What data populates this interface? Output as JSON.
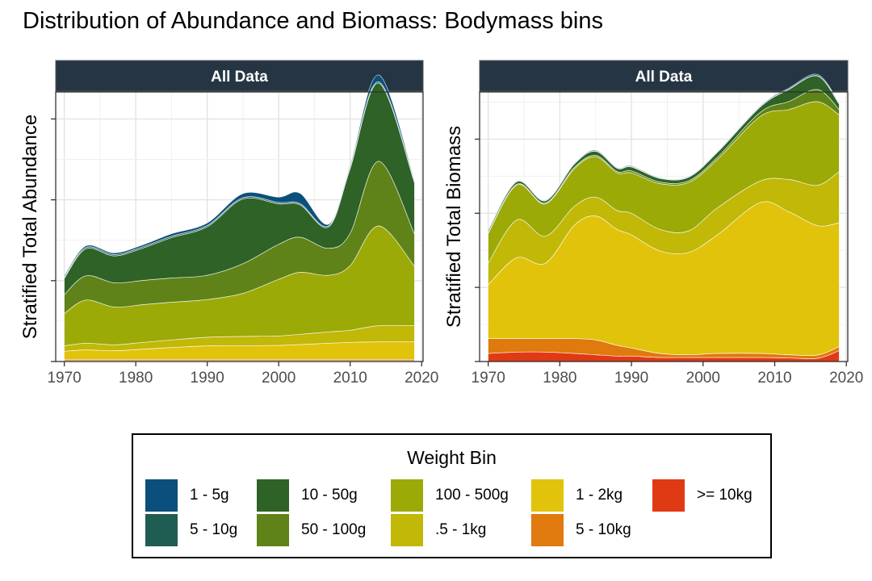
{
  "title": "Distribution of Abundance and Biomass: Bodymass bins",
  "legend": {
    "title": "Weight Bin",
    "entries": [
      {
        "label": "1 - 5g",
        "color": "#0b4f7c"
      },
      {
        "label": "5 - 10g",
        "color": "#1f5c52"
      },
      {
        "label": "10 - 50g",
        "color": "#2f6226"
      },
      {
        "label": "50 - 100g",
        "color": "#5f8318"
      },
      {
        "label": "100 - 500g",
        "color": "#9caa08"
      },
      {
        "label": ".5 - 1kg",
        "color": "#c1b807"
      },
      {
        "label": "1 - 2kg",
        "color": "#e2c30c"
      },
      {
        "label": "5 - 10kg",
        "color": "#e0790e"
      },
      {
        "label": ">= 10kg",
        "color": "#e03a14"
      }
    ]
  },
  "chart_data": [
    {
      "type": "area",
      "stacked": true,
      "strip_label": "All Data",
      "ylabel": "Stratified Total Abundance",
      "xlabel": "",
      "xlim": [
        1968.8,
        2020.2
      ],
      "ylim": [
        0,
        100
      ],
      "xticks": [
        1970,
        1980,
        1990,
        2000,
        2010,
        2020
      ],
      "yticks": [
        0,
        30,
        60,
        90
      ],
      "ytick_labels_shown": false,
      "grid": true,
      "x": [
        1970,
        1973,
        1977,
        1981,
        1985,
        1990,
        1995,
        2000,
        2003,
        2007,
        2010,
        2014,
        2019
      ],
      "series": [
        {
          "name": ">= 10kg",
          "values": [
            0.3,
            0.3,
            0.3,
            0.3,
            0.3,
            0.3,
            0.3,
            0.3,
            0.3,
            0.3,
            0.3,
            0.3,
            0.3
          ]
        },
        {
          "name": "5 - 10kg",
          "values": [
            0.5,
            0.5,
            0.5,
            0.5,
            0.5,
            0.5,
            0.5,
            0.5,
            0.5,
            0.5,
            0.5,
            0.5,
            0.5
          ]
        },
        {
          "name": "1 - 2kg",
          "values": [
            3.0,
            3.5,
            3.2,
            3.8,
            4.4,
            5.0,
            5.0,
            5.2,
            5.5,
            6.0,
            6.3,
            6.5,
            6.5
          ]
        },
        {
          "name": ".5 - 1kg",
          "values": [
            2.0,
            2.5,
            2.2,
            2.5,
            2.8,
            3.2,
            3.5,
            3.5,
            3.8,
            4.2,
            4.5,
            6.0,
            6.0
          ]
        },
        {
          "name": "100 - 500g",
          "values": [
            12,
            16,
            14,
            14,
            14,
            14,
            16,
            21,
            23,
            21,
            24,
            37,
            22
          ]
        },
        {
          "name": "50 - 100g",
          "values": [
            7,
            9,
            9,
            9,
            9,
            9,
            11,
            13,
            13,
            10,
            12,
            24,
            12
          ]
        },
        {
          "name": "10 - 50g",
          "values": [
            6,
            10,
            10,
            12,
            15,
            18,
            24,
            15,
            12,
            8,
            24,
            29,
            19
          ]
        },
        {
          "name": "5 - 10g",
          "values": [
            0.4,
            0.5,
            0.5,
            0.5,
            0.5,
            0.5,
            0.5,
            0.5,
            0.5,
            0.4,
            0.5,
            0.5,
            0.4
          ]
        },
        {
          "name": "1 - 5g",
          "values": [
            0.6,
            0.6,
            0.6,
            0.7,
            0.9,
            0.9,
            1.5,
            2.0,
            3.8,
            0.6,
            0.8,
            2.5,
            0.6
          ]
        }
      ]
    },
    {
      "type": "area",
      "stacked": true,
      "strip_label": "All Data",
      "ylabel": "Stratified Total Biomass",
      "xlabel": "",
      "xlim": [
        1968.8,
        2020.2
      ],
      "ylim": [
        0,
        100
      ],
      "xticks": [
        1970,
        1980,
        1990,
        2000,
        2010,
        2020
      ],
      "yticks": [
        0,
        27.5,
        55,
        82.5
      ],
      "ytick_labels_shown": false,
      "grid": true,
      "x": [
        1970,
        1974,
        1978,
        1982,
        1985,
        1988,
        1990,
        1994,
        1998,
        2002,
        2008,
        2012,
        2016,
        2019
      ],
      "series": [
        {
          "name": ">= 10kg",
          "values": [
            3.0,
            3.5,
            3.5,
            3.0,
            2.5,
            2.0,
            2.0,
            1.5,
            1.5,
            1.5,
            1.5,
            1.3,
            1.2,
            4.0
          ]
        },
        {
          "name": "5 - 10kg",
          "values": [
            5.5,
            5.0,
            5.0,
            5.5,
            5.5,
            4.0,
            3.0,
            1.5,
            1.0,
            1.5,
            1.5,
            1.2,
            1.2,
            1.5
          ]
        },
        {
          "name": "1 - 2kg",
          "values": [
            20,
            30,
            28,
            42,
            46,
            43,
            42,
            38,
            38,
            44,
            56,
            53,
            48,
            46
          ]
        },
        {
          "name": ".5 - 1kg",
          "values": [
            8,
            14,
            10,
            7,
            7,
            7,
            8,
            8,
            8,
            10,
            8,
            12,
            15,
            19
          ]
        },
        {
          "name": "100 - 500g",
          "values": [
            11,
            13,
            12,
            14,
            15,
            14,
            15,
            17,
            18,
            18,
            24,
            26,
            31,
            21
          ]
        },
        {
          "name": "50 - 100g",
          "values": [
            0.3,
            0.3,
            0.3,
            0.5,
            0.5,
            0.5,
            0.7,
            0.6,
            0.6,
            0.8,
            1.5,
            3.0,
            4.5,
            2.0
          ]
        },
        {
          "name": "10 - 50g",
          "values": [
            0.8,
            0.9,
            0.8,
            1.2,
            1.5,
            1.2,
            1.5,
            1.3,
            1.3,
            1.8,
            2.0,
            4.5,
            5.0,
            2.0
          ]
        },
        {
          "name": "5 - 10g",
          "values": [
            0.1,
            0.1,
            0.1,
            0.1,
            0.1,
            0.1,
            0.1,
            0.1,
            0.1,
            0.1,
            0.1,
            0.1,
            0.1,
            0.1
          ]
        },
        {
          "name": "1 - 5g",
          "values": [
            0.2,
            0.2,
            0.2,
            0.2,
            0.3,
            0.2,
            0.3,
            0.2,
            0.2,
            0.2,
            0.3,
            0.4,
            0.5,
            0.3
          ]
        }
      ]
    }
  ]
}
